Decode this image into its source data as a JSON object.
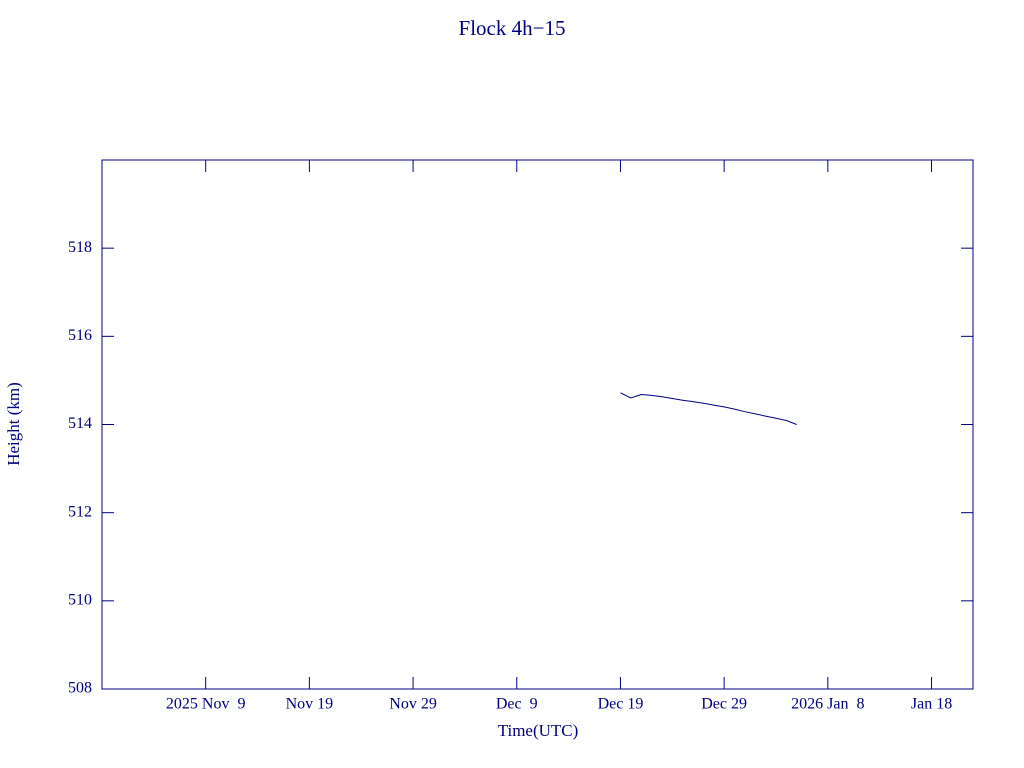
{
  "chart_data": {
    "type": "line",
    "title": "Flock 4h−15",
    "xlabel": "Time(UTC)",
    "ylabel": "Height (km)",
    "color": "#000080",
    "xlim": [
      "2025-10-30",
      "2026-01-22"
    ],
    "xticks": [
      {
        "value": "2025-11-09",
        "label": "2025 Nov  9"
      },
      {
        "value": "2025-11-19",
        "label": "Nov 19"
      },
      {
        "value": "2025-11-29",
        "label": "Nov 29"
      },
      {
        "value": "2025-12-09",
        "label": "Dec  9"
      },
      {
        "value": "2025-12-19",
        "label": "Dec 19"
      },
      {
        "value": "2025-12-29",
        "label": "Dec 29"
      },
      {
        "value": "2026-01-08",
        "label": "2026 Jan  8"
      },
      {
        "value": "2026-01-18",
        "label": "Jan 18"
      }
    ],
    "ylim": [
      508,
      520
    ],
    "yticks": [
      508,
      510,
      512,
      514,
      516,
      518
    ],
    "x": [
      "2025-12-19",
      "2025-12-20",
      "2025-12-21",
      "2025-12-22",
      "2025-12-23",
      "2025-12-24",
      "2025-12-25",
      "2025-12-26",
      "2025-12-27",
      "2025-12-28",
      "2025-12-29",
      "2025-12-30",
      "2025-12-31",
      "2026-01-01",
      "2026-01-02",
      "2026-01-03",
      "2026-01-04",
      "2026-01-05"
    ],
    "values": [
      514.72,
      514.6,
      514.68,
      514.66,
      514.63,
      514.59,
      514.55,
      514.52,
      514.48,
      514.44,
      514.4,
      514.35,
      514.29,
      514.24,
      514.19,
      514.14,
      514.09,
      514.0
    ]
  }
}
